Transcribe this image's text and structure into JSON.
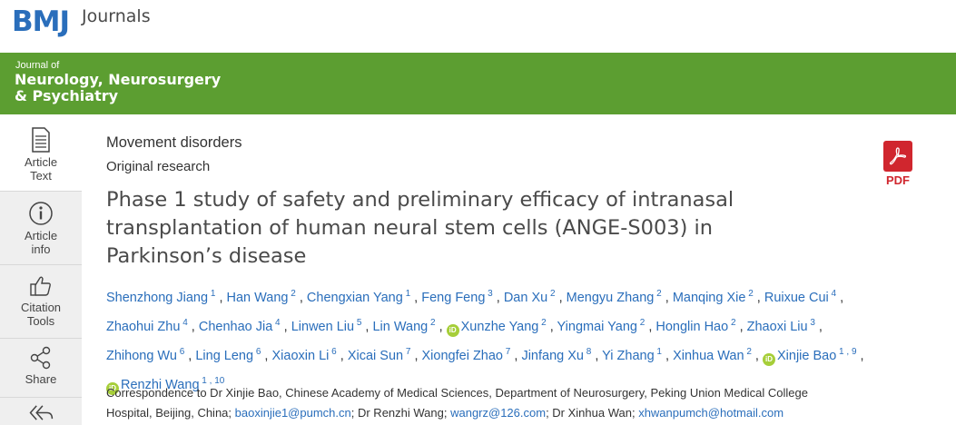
{
  "header": {
    "logo_text": "BMJ",
    "journals_label": "Journals"
  },
  "banner": {
    "small": "Journal of",
    "line1": "Neurology, Neurosurgery",
    "line2": "& Psychiatry"
  },
  "sidebar": {
    "items": [
      {
        "label1": "Article",
        "label2": "Text",
        "icon": "document-icon"
      },
      {
        "label1": "Article",
        "label2": "info",
        "icon": "info-icon"
      },
      {
        "label1": "Citation",
        "label2": "Tools",
        "icon": "thumbs-up-icon"
      },
      {
        "label1": "Share",
        "label2": "",
        "icon": "share-icon"
      },
      {
        "label1": "",
        "label2": "",
        "icon": "reply-all-icon"
      }
    ]
  },
  "article": {
    "section": "Movement disorders",
    "type": "Original research",
    "title": "Phase 1 study of safety and preliminary efficacy of intranasal transplantation of human neural stem cells (ANGE-S003) in Parkinson’s disease"
  },
  "authors": [
    {
      "name": "Shenzhong Jiang",
      "aff": "1",
      "orcid": false
    },
    {
      "name": "Han Wang",
      "aff": "2",
      "orcid": false
    },
    {
      "name": "Chengxian Yang",
      "aff": "1",
      "orcid": false
    },
    {
      "name": "Feng Feng",
      "aff": "3",
      "orcid": false
    },
    {
      "name": "Dan Xu",
      "aff": "2",
      "orcid": false
    },
    {
      "name": "Mengyu Zhang",
      "aff": "2",
      "orcid": false
    },
    {
      "name": "Manqing Xie",
      "aff": "2",
      "orcid": false
    },
    {
      "name": "Ruixue Cui",
      "aff": "4",
      "orcid": false
    },
    {
      "name": "Zhaohui Zhu",
      "aff": "4",
      "orcid": false
    },
    {
      "name": "Chenhao Jia",
      "aff": "4",
      "orcid": false
    },
    {
      "name": "Linwen Liu",
      "aff": "5",
      "orcid": false
    },
    {
      "name": "Lin Wang",
      "aff": "2",
      "orcid": false
    },
    {
      "name": "Xunzhe Yang",
      "aff": "2",
      "orcid": true
    },
    {
      "name": "Yingmai Yang",
      "aff": "2",
      "orcid": false
    },
    {
      "name": "Honglin Hao",
      "aff": "2",
      "orcid": false
    },
    {
      "name": "Zhaoxi Liu",
      "aff": "3",
      "orcid": false
    },
    {
      "name": "Zhihong Wu",
      "aff": "6",
      "orcid": false
    },
    {
      "name": "Ling Leng",
      "aff": "6",
      "orcid": false
    },
    {
      "name": "Xiaoxin Li",
      "aff": "6",
      "orcid": false
    },
    {
      "name": "Xicai Sun",
      "aff": "7",
      "orcid": false
    },
    {
      "name": "Xiongfei Zhao",
      "aff": "7",
      "orcid": false
    },
    {
      "name": "Jinfang Xu",
      "aff": "8",
      "orcid": false
    },
    {
      "name": "Yi Zhang",
      "aff": "1",
      "orcid": false
    },
    {
      "name": "Xinhua Wan",
      "aff": "2",
      "orcid": false
    },
    {
      "name": "Xinjie Bao",
      "aff": "1 , 9",
      "orcid": true
    },
    {
      "name": "Renzhi Wang",
      "aff": "1 , 10",
      "orcid": true
    }
  ],
  "correspondence": {
    "line1": "Correspondence to Dr Xinjie Bao, Chinese Academy of Medical Sciences, Department of Neurosurgery, Peking Union Medical College",
    "line2_prefix": "Hospital, Beijing, China; ",
    "email1": "baoxinjie1@pumch.cn",
    "mid1": "; Dr Renzhi Wang; ",
    "email2": "wangrz@126.com",
    "mid2": "; Dr Xinhua Wan; ",
    "email3": "xhwanpumch@hotmail.com"
  },
  "pdf": {
    "label": "PDF"
  },
  "colors": {
    "brand_blue": "#2a6ebb",
    "banner_green": "#5c9e31",
    "pdf_red": "#d0262e",
    "orcid_green": "#a6ce39"
  }
}
